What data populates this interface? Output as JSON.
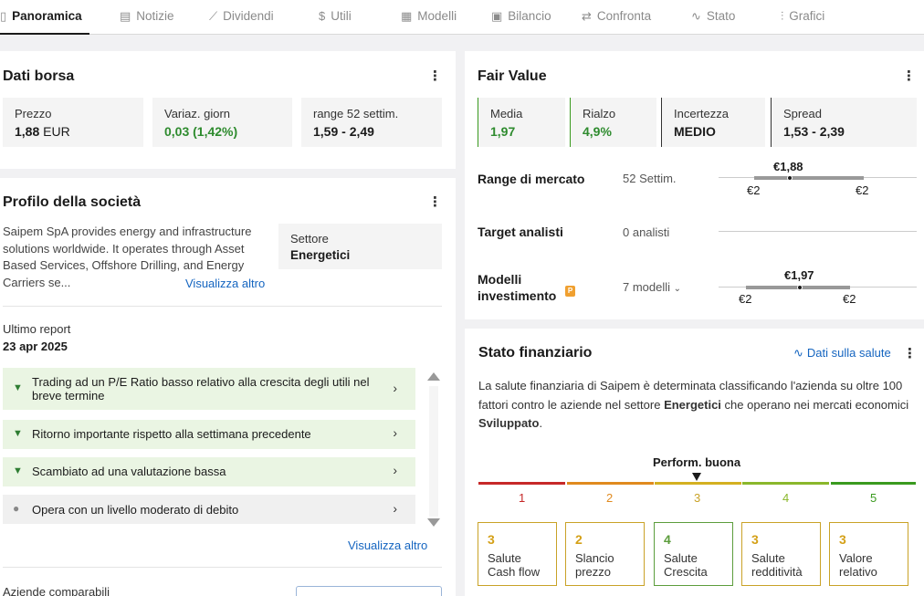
{
  "tabs": [
    {
      "label": "Panoramica",
      "icon": "clipboard-icon",
      "glyph": "▯"
    },
    {
      "label": "Notizie",
      "icon": "document-icon",
      "glyph": "▤"
    },
    {
      "label": "Dividendi",
      "icon": "growth-icon",
      "glyph": "⟋"
    },
    {
      "label": "Utili",
      "icon": "dollar-icon",
      "glyph": "$"
    },
    {
      "label": "Modelli",
      "icon": "grid-icon",
      "glyph": "▦"
    },
    {
      "label": "Bilancio",
      "icon": "calculator-icon",
      "glyph": "▣"
    },
    {
      "label": "Confronta",
      "icon": "compare-icon",
      "glyph": "⇄"
    },
    {
      "label": "Stato",
      "icon": "pulse-icon",
      "glyph": "∿"
    },
    {
      "label": "Grafici",
      "icon": "bar-chart-icon",
      "glyph": "⫶"
    }
  ],
  "dati_borsa": {
    "title": "Dati borsa",
    "tiles": [
      {
        "label": "Prezzo",
        "value": "1,88",
        "unit": "EUR"
      },
      {
        "label": "Variaz. giorn",
        "value": "0,03 (1,42%)"
      },
      {
        "label": "range 52 settim.",
        "value": "1,59 - 2,49"
      }
    ]
  },
  "profilo": {
    "title": "Profilo della società",
    "description": "Saipem SpA provides energy and infrastructure solutions worldwide. It operates through Asset Based Services, Offshore Drilling, and Energy Carriers se...",
    "more_link": "Visualizza altro",
    "sector_label": "Settore",
    "sector_value": "Energetici",
    "report_label": "Ultimo report",
    "report_date": "23 apr 2025",
    "signals": [
      {
        "text": "Trading ad un P/E Ratio basso relativo alla crescita degli utili nel breve termine",
        "type": "positive"
      },
      {
        "text": "Ritorno importante rispetto alla settimana precedente",
        "type": "positive"
      },
      {
        "text": "Scambiato ad una valutazione bassa",
        "type": "positive"
      },
      {
        "text": "Opera con un livello moderato di debito",
        "type": "neutral"
      }
    ],
    "signals_more": "Visualizza altro",
    "comparables_label": "Aziende comparabili"
  },
  "fair_value": {
    "title": "Fair Value",
    "tiles": [
      {
        "label": "Media",
        "value": "1,97",
        "color": "green"
      },
      {
        "label": "Rialzo",
        "value": "4,9%",
        "color": "green"
      },
      {
        "label": "Incertezza",
        "value": "MEDIO",
        "color": "dark"
      },
      {
        "label": "Spread",
        "value": "1,53 - 2,39",
        "color": "dark"
      }
    ],
    "rows": [
      {
        "label": "Range di mercato",
        "mid": "52 Settim.",
        "marker": "€1,88",
        "low": "€2",
        "high": "€2"
      },
      {
        "label": "Target analisti",
        "mid": "0 analisti"
      },
      {
        "label": "Modelli investimento",
        "mid": "7 modelli",
        "marker": "€1,97",
        "low": "€2",
        "high": "€2"
      }
    ]
  },
  "stato": {
    "title": "Stato finanziario",
    "link": "Dati sulla salute",
    "desc_1": "La salute finanziaria di Saipem è determinata classificando l'azienda su oltre 100 fattori contro le aziende nel settore ",
    "desc_sector": "Energetici",
    "desc_2": " che operano nei mercati economici ",
    "desc_market": "Sviluppato",
    "desc_end": ".",
    "perf_label": "Perform. buona",
    "rating": 3,
    "levels": [
      {
        "n": "1",
        "color": "#c62828"
      },
      {
        "n": "2",
        "color": "#e08a1e"
      },
      {
        "n": "3",
        "color": "#d4b021"
      },
      {
        "n": "4",
        "color": "#8ab72b"
      },
      {
        "n": "5",
        "color": "#3a9a1f"
      }
    ],
    "boxes": [
      {
        "score": "3",
        "label": "Salute Cash flow"
      },
      {
        "score": "2",
        "label": "Slancio prezzo"
      },
      {
        "score": "4",
        "label": "Salute Crescita"
      },
      {
        "score": "3",
        "label": "Salute redditività"
      },
      {
        "score": "3",
        "label": "Valore relativo"
      }
    ]
  }
}
